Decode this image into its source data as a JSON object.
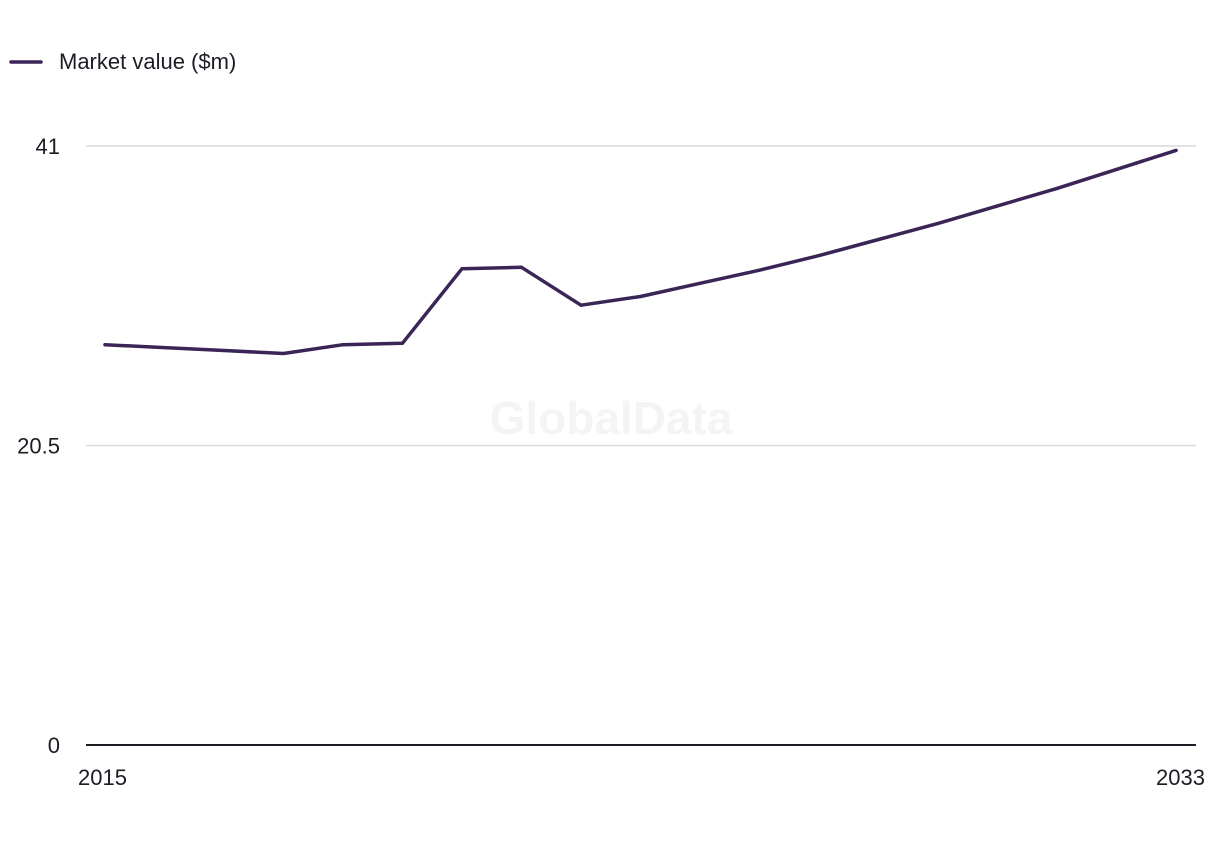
{
  "watermark": "GlobalData",
  "chart_data": {
    "type": "line",
    "title": "",
    "xlabel": "",
    "ylabel": "",
    "x": [
      2015,
      2016,
      2017,
      2018,
      2019,
      2020,
      2021,
      2022,
      2023,
      2024,
      2025,
      2026,
      2027,
      2028,
      2029,
      2030,
      2031,
      2032,
      2033
    ],
    "series": [
      {
        "name": "Market value ($m)",
        "color": "#3a2556",
        "values": [
          27.4,
          27.2,
          27.0,
          26.8,
          27.4,
          27.5,
          32.6,
          32.7,
          30.1,
          30.7,
          31.6,
          32.5,
          33.5,
          34.6,
          35.7,
          36.9,
          38.1,
          39.4,
          40.7
        ]
      }
    ],
    "ylim": [
      0,
      41
    ],
    "yticks": [
      "0",
      "20.5",
      "41"
    ],
    "ytick_values": [
      0,
      20.5,
      41
    ],
    "xticks": [
      "2015",
      "2033"
    ],
    "xtick_values": [
      2015,
      2033
    ],
    "grid": true,
    "legend_position": "top-left",
    "colors": {
      "line": "#3a2556",
      "grid": "#d9d9d9",
      "axis": "#1f1a24",
      "text": "#1f1a24",
      "watermark": "#f4f4f4"
    }
  }
}
